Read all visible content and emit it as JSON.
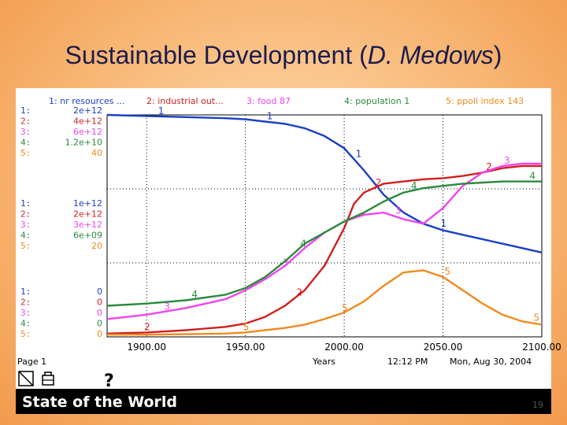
{
  "slide": {
    "title_prefix": "Sustainable Development (",
    "title_italic": "D. Medows",
    "title_suffix": ")",
    "footer_title": "State of the World",
    "slide_number": "19"
  },
  "tool": {
    "page_label": "Page 1",
    "question_mark": "?",
    "x_axis_label": "Years",
    "time_stamp": "12:12 PM",
    "date_stamp": "Mon, Aug 30, 2004"
  },
  "colors": {
    "nr_resources": "#1a3fc4",
    "industrial_output": "#d11f1f",
    "food": "#ee44ee",
    "population": "#2a8a3a",
    "ppoll_index": "#f08a1c"
  },
  "chart_data": {
    "type": "line",
    "title": "",
    "xlabel": "Years",
    "xlim": [
      1880,
      2100
    ],
    "x_ticks": [
      "1900.00",
      "1950.00",
      "2000.00",
      "2050.00",
      "2100.00"
    ],
    "legend": [
      {
        "num": "1",
        "text": "1: nr resources ...",
        "color": "#1a3fc4"
      },
      {
        "num": "2",
        "text": "2: industrial out...",
        "color": "#d11f1f"
      },
      {
        "num": "3",
        "text": "3: food 87",
        "color": "#ee44ee"
      },
      {
        "num": "4",
        "text": "4: population 1",
        "color": "#2a8a3a"
      },
      {
        "num": "5",
        "text": "5: ppoll index 143",
        "color": "#f08a1c"
      }
    ],
    "scales": [
      {
        "level": "top",
        "labels": [
          {
            "num": "1:",
            "value": "2e+12"
          },
          {
            "num": "2:",
            "value": "4e+12"
          },
          {
            "num": "3:",
            "value": "6e+12"
          },
          {
            "num": "4:",
            "value": "1.2e+10"
          },
          {
            "num": "5:",
            "value": "40"
          }
        ]
      },
      {
        "level": "mid",
        "labels": [
          {
            "num": "1:",
            "value": "1e+12"
          },
          {
            "num": "2:",
            "value": "2e+12"
          },
          {
            "num": "3:",
            "value": "3e+12"
          },
          {
            "num": "4:",
            "value": "6e+09"
          },
          {
            "num": "5:",
            "value": "20"
          }
        ]
      },
      {
        "level": "bottom",
        "labels": [
          {
            "num": "1:",
            "value": "0"
          },
          {
            "num": "2:",
            "value": "0"
          },
          {
            "num": "3:",
            "value": "0"
          },
          {
            "num": "4:",
            "value": "0"
          },
          {
            "num": "5:",
            "value": "0"
          }
        ]
      }
    ],
    "ylim": [
      0,
      1
    ],
    "series": [
      {
        "name": "1: nr resources ...",
        "label": "1",
        "color": "#1a3fc4",
        "x": [
          1880,
          1900,
          1920,
          1940,
          1950,
          1960,
          1970,
          1980,
          1990,
          2000,
          2010,
          2020,
          2030,
          2040,
          2050,
          2060,
          2070,
          2080,
          2090,
          2100
        ],
        "y": [
          1.0,
          0.995,
          0.99,
          0.985,
          0.98,
          0.97,
          0.96,
          0.94,
          0.905,
          0.85,
          0.75,
          0.64,
          0.56,
          0.51,
          0.48,
          0.46,
          0.44,
          0.42,
          0.4,
          0.38
        ],
        "marker_x": [
          1905,
          1960,
          2005,
          2048
        ]
      },
      {
        "name": "2: industrial out...",
        "label": "2",
        "color": "#d11f1f",
        "x": [
          1880,
          1900,
          1920,
          1940,
          1950,
          1960,
          1970,
          1980,
          1990,
          2000,
          2005,
          2010,
          2020,
          2030,
          2040,
          2050,
          2060,
          2070,
          2080,
          2090,
          2100
        ],
        "y": [
          0.015,
          0.02,
          0.03,
          0.045,
          0.06,
          0.09,
          0.14,
          0.21,
          0.32,
          0.49,
          0.6,
          0.65,
          0.69,
          0.7,
          0.71,
          0.715,
          0.725,
          0.74,
          0.76,
          0.77,
          0.77
        ],
        "marker_x": [
          1898,
          1975,
          2015,
          2071
        ]
      },
      {
        "name": "3: food 87",
        "label": "3",
        "color": "#ee44ee",
        "x": [
          1880,
          1900,
          1920,
          1940,
          1950,
          1960,
          1970,
          1980,
          1990,
          2000,
          2010,
          2020,
          2030,
          2040,
          2050,
          2060,
          2070,
          2080,
          2090,
          2100
        ],
        "y": [
          0.08,
          0.1,
          0.13,
          0.17,
          0.21,
          0.26,
          0.32,
          0.4,
          0.47,
          0.52,
          0.55,
          0.56,
          0.53,
          0.51,
          0.58,
          0.68,
          0.74,
          0.77,
          0.78,
          0.78
        ],
        "marker_x": [
          1908,
          1968,
          2025,
          2080
        ]
      },
      {
        "name": "4: population 1",
        "label": "4",
        "color": "#2a8a3a",
        "x": [
          1880,
          1900,
          1920,
          1940,
          1950,
          1960,
          1970,
          1980,
          1990,
          2000,
          2010,
          2020,
          2030,
          2040,
          2050,
          2060,
          2070,
          2080,
          2090,
          2100
        ],
        "y": [
          0.14,
          0.15,
          0.165,
          0.19,
          0.22,
          0.27,
          0.34,
          0.42,
          0.47,
          0.52,
          0.56,
          0.61,
          0.65,
          0.67,
          0.68,
          0.69,
          0.695,
          0.7,
          0.7,
          0.7
        ],
        "marker_x": [
          1922,
          1977,
          2033,
          2093
        ]
      },
      {
        "name": "5: ppoll index 143",
        "label": "5",
        "color": "#f08a1c",
        "x": [
          1880,
          1900,
          1920,
          1940,
          1950,
          1960,
          1970,
          1980,
          1990,
          2000,
          2010,
          2020,
          2030,
          2040,
          2050,
          2060,
          2070,
          2080,
          2090,
          2100
        ],
        "y": [
          0.01,
          0.01,
          0.012,
          0.015,
          0.02,
          0.03,
          0.04,
          0.055,
          0.08,
          0.11,
          0.16,
          0.23,
          0.29,
          0.3,
          0.27,
          0.21,
          0.15,
          0.1,
          0.07,
          0.055
        ],
        "marker_x": [
          1948,
          1998,
          2050,
          2095
        ]
      }
    ]
  }
}
